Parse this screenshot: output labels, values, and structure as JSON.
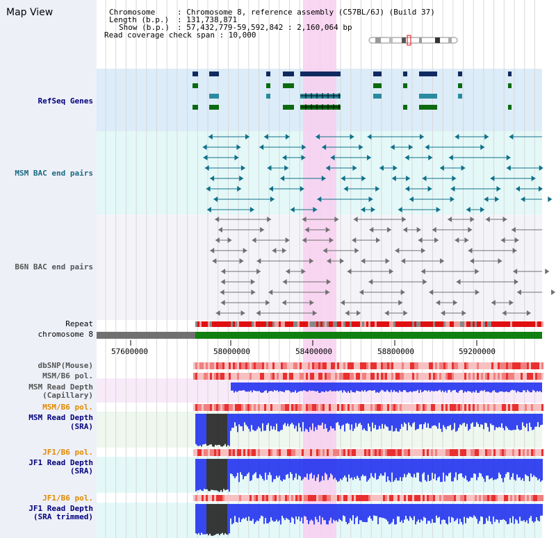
{
  "page_title": "Map View",
  "info": {
    "chromosome_key": "Chromosome",
    "chromosome_val": ": Chromosome 8, reference assembly (C57BL/6J) (Build 37)",
    "length_key": "Length (b.p.)",
    "length_val": ": 131,738,871",
    "show_key": "Show (b.p.)",
    "show_val": ": 57,432,779-59,592,842 : 2,160,064 bp",
    "coverage": "Read coverage check span : 10,000"
  },
  "tracks": {
    "refseq": "RefSeq Genes",
    "msm_bac": "MSM BAC end pairs",
    "b6n_bac": "B6N BAC end pairs",
    "repeat": "Repeat",
    "chromosome": "chromosome 8",
    "dbsnp": "dbSNP(Mouse)",
    "msm_b6_pol": "MSM/B6 pol.",
    "msm_depth_cap_1": "MSM Read Depth",
    "msm_depth_cap_2": "(Capillary)",
    "msm_b6_pol2": "MSM/B6 pol.",
    "msm_depth_sra_1": "MSM Read Depth",
    "msm_depth_sra_2": "(SRA)",
    "jf1_b6_pol": "JF1/B6 pol.",
    "jf1_depth_1": "JF1 Read Depth",
    "jf1_depth_2": "(SRA)",
    "jf1_b6_pol2": "JF1/B6 pol.",
    "jf1_trim_1": "JF1 Read Depth",
    "jf1_trim_2": "(SRA trimmed)"
  },
  "axis": {
    "ticks": [
      "57600000",
      "58000000",
      "58400000",
      "58800000",
      "59200000"
    ]
  },
  "colors": {
    "refseq_bg": "#dcecf8",
    "msm_bac_bg": "#e4f8f8",
    "b6n_bac_bg": "#f4f4f8",
    "highlight": "#f8cff0",
    "chromosome_bar": "#108010",
    "depth_blue": "#2233ee",
    "pol_red": "#e83030"
  }
}
